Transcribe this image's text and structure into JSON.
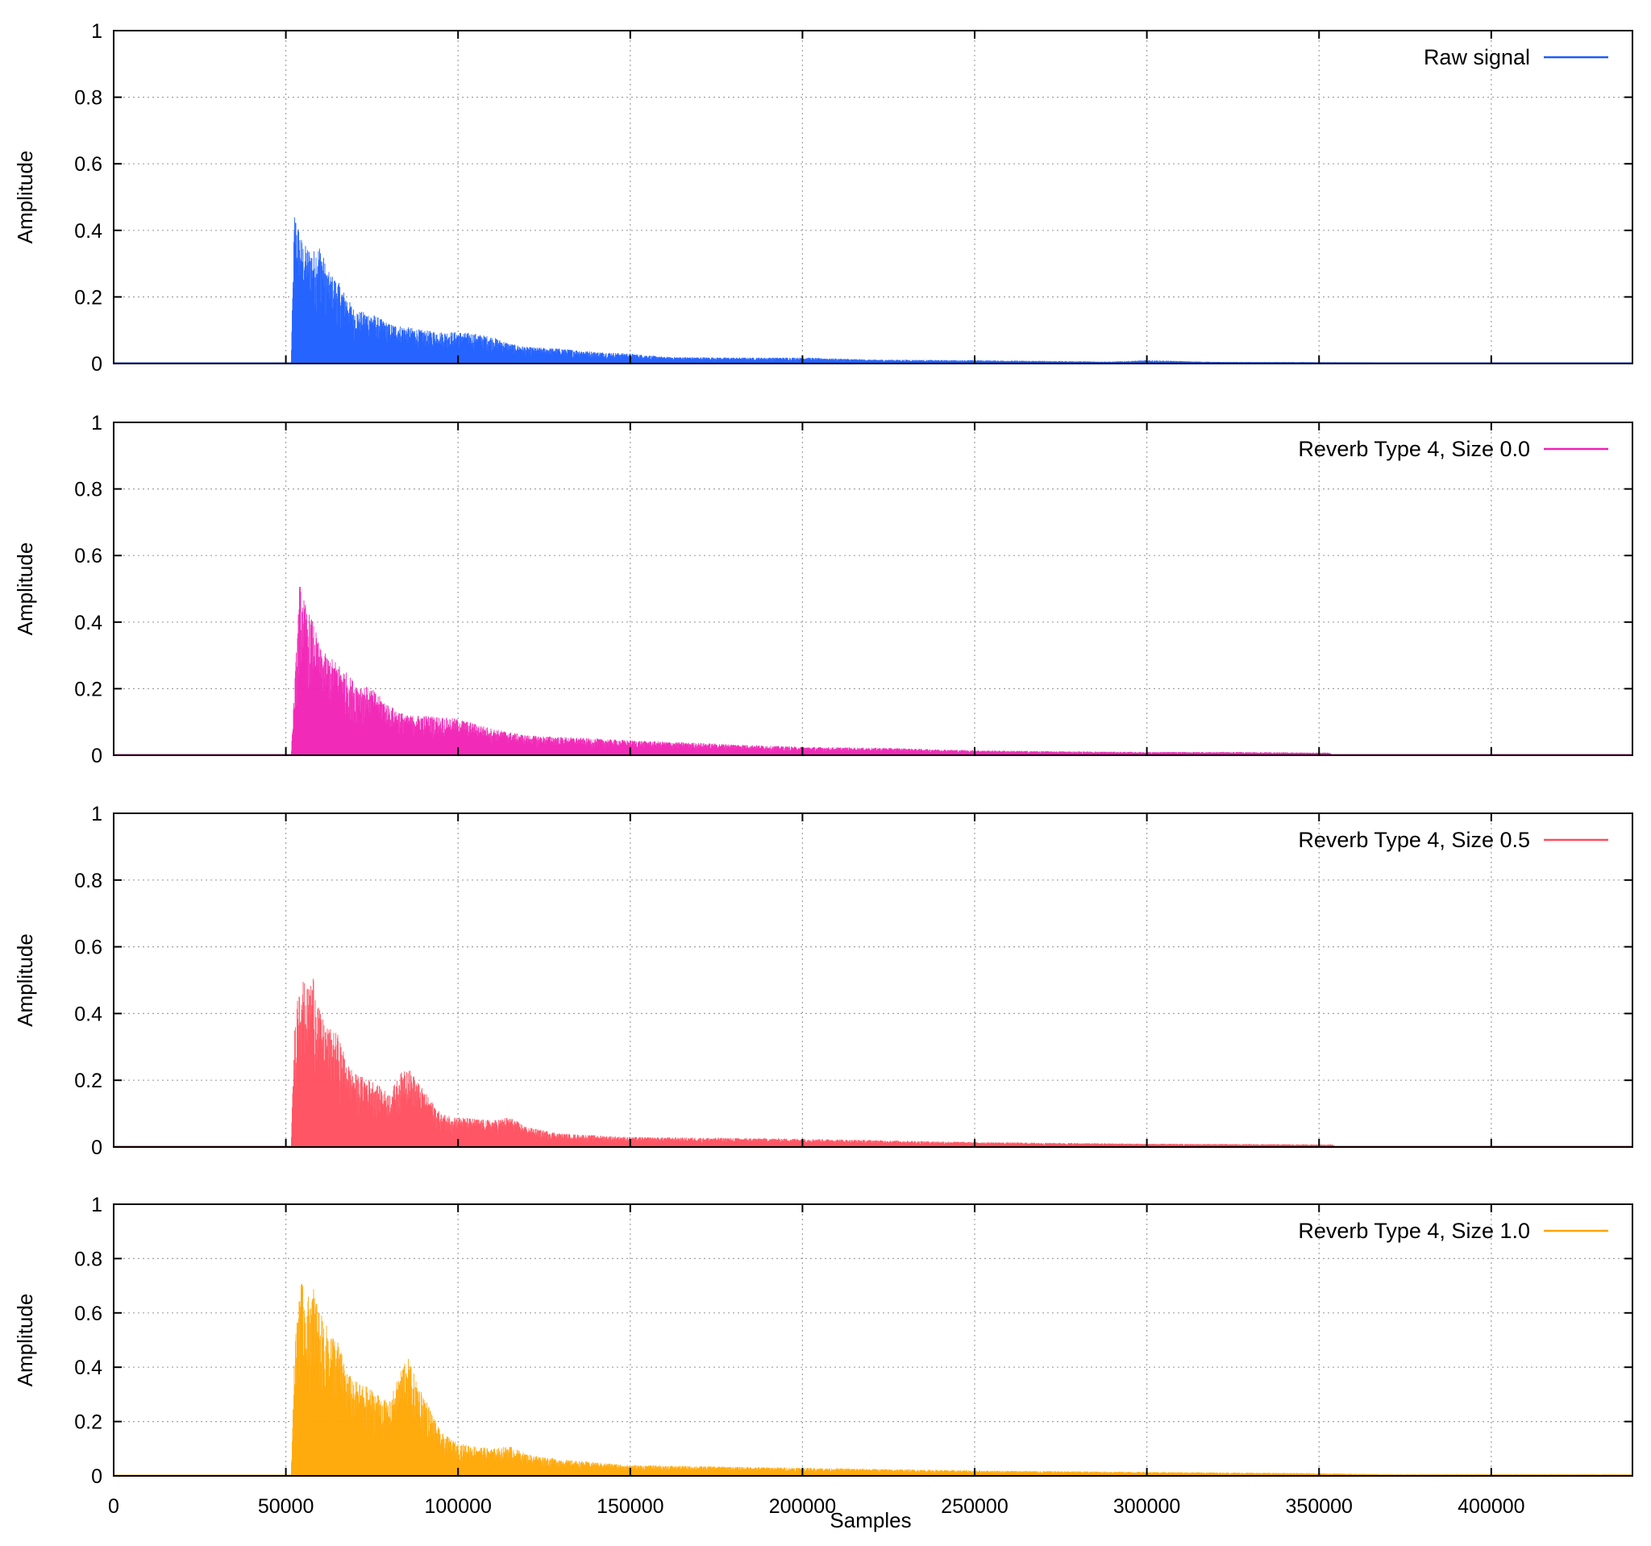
{
  "chart_data": {
    "type": "area",
    "xlabel": "Samples",
    "ylabel": "Amplitude",
    "xlim": [
      0,
      441000
    ],
    "ylim": [
      0,
      1
    ],
    "x_ticks": [
      0,
      50000,
      100000,
      150000,
      200000,
      250000,
      300000,
      350000,
      400000
    ],
    "x_tick_labels": [
      "0",
      "50000",
      "100000",
      "150000",
      "200000",
      "250000",
      "300000",
      "350000",
      "400000"
    ],
    "y_ticks": [
      0,
      0.2,
      0.4,
      0.6,
      0.8,
      1
    ],
    "y_tick_labels": [
      "0",
      "0.2",
      "0.4",
      "0.6",
      "0.8",
      "1"
    ],
    "grid": true,
    "legend_position": "top-right",
    "panels": [
      {
        "series_name": "Raw signal",
        "color": "#1a5cff",
        "envelope": {
          "x": [
            51500,
            52500,
            55000,
            58000,
            60000,
            62000,
            65000,
            70000,
            75000,
            80000,
            85000,
            90000,
            95000,
            100000,
            105000,
            110000,
            115000,
            120000,
            130000,
            140000,
            150000,
            160000,
            180000,
            200000,
            220000,
            250000,
            270000,
            290000,
            300000,
            320000,
            350000,
            365000,
            366000
          ],
          "y": [
            0.0,
            0.46,
            0.36,
            0.34,
            0.36,
            0.28,
            0.25,
            0.16,
            0.15,
            0.12,
            0.11,
            0.1,
            0.095,
            0.095,
            0.09,
            0.08,
            0.06,
            0.05,
            0.045,
            0.035,
            0.03,
            0.02,
            0.018,
            0.018,
            0.012,
            0.01,
            0.008,
            0.006,
            0.01,
            0.005,
            0.004,
            0.003,
            0.0
          ]
        }
      },
      {
        "series_name": "Reverb Type 4, Size 0.0",
        "color": "#f020b4",
        "envelope": {
          "x": [
            51500,
            52500,
            54000,
            56000,
            58000,
            60000,
            62000,
            65000,
            70000,
            75000,
            80000,
            85000,
            90000,
            100000,
            110000,
            120000,
            130000,
            150000,
            175000,
            200000,
            225000,
            250000,
            275000,
            300000,
            325000,
            350000,
            353000,
            354000
          ],
          "y": [
            0.0,
            0.2,
            0.52,
            0.44,
            0.4,
            0.32,
            0.3,
            0.28,
            0.22,
            0.2,
            0.15,
            0.12,
            0.12,
            0.11,
            0.08,
            0.06,
            0.055,
            0.045,
            0.035,
            0.025,
            0.022,
            0.015,
            0.012,
            0.01,
            0.01,
            0.008,
            0.008,
            0.0
          ]
        }
      },
      {
        "series_name": "Reverb Type 4, Size 0.5",
        "color": "#ff4c5c",
        "envelope": {
          "x": [
            51500,
            52500,
            54000,
            56000,
            58000,
            60000,
            62000,
            65000,
            68000,
            70000,
            75000,
            80000,
            85000,
            88000,
            90000,
            95000,
            100000,
            110000,
            115000,
            120000,
            130000,
            150000,
            200000,
            250000,
            300000,
            350000,
            354000,
            355000
          ],
          "y": [
            0.0,
            0.35,
            0.54,
            0.47,
            0.52,
            0.4,
            0.36,
            0.34,
            0.25,
            0.22,
            0.2,
            0.16,
            0.25,
            0.2,
            0.17,
            0.1,
            0.09,
            0.08,
            0.09,
            0.06,
            0.04,
            0.03,
            0.025,
            0.015,
            0.01,
            0.008,
            0.008,
            0.0
          ]
        }
      },
      {
        "series_name": "Reverb Type 4, Size 1.0",
        "color": "#ffa500",
        "envelope": {
          "x": [
            51500,
            52500,
            54000,
            56000,
            58000,
            60000,
            62000,
            65000,
            68000,
            70000,
            75000,
            80000,
            85000,
            88000,
            90000,
            95000,
            100000,
            110000,
            115000,
            120000,
            130000,
            150000,
            200000,
            250000,
            300000,
            350000,
            370000,
            400000,
            441000
          ],
          "y": [
            0.0,
            0.45,
            0.74,
            0.65,
            0.7,
            0.6,
            0.55,
            0.5,
            0.38,
            0.35,
            0.32,
            0.27,
            0.45,
            0.35,
            0.3,
            0.16,
            0.12,
            0.1,
            0.11,
            0.08,
            0.06,
            0.04,
            0.03,
            0.02,
            0.015,
            0.01,
            0.006,
            0.006,
            0.006
          ]
        }
      }
    ]
  }
}
